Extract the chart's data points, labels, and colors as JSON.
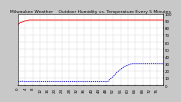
{
  "title": "Milwaukee Weather    Outdoor Humidity vs. Temperature Every 5 Minutes",
  "background_color": "#c8c8c8",
  "plot_bg_color": "#ffffff",
  "grid_color": "#a0a0a0",
  "red_color": "#ff0000",
  "blue_color": "#0000cc",
  "red_y": [
    85,
    87,
    88,
    89,
    90,
    90,
    91,
    91,
    91,
    91,
    91,
    91,
    91,
    91,
    91,
    91,
    91,
    91,
    91,
    91,
    91,
    91,
    91,
    91,
    91,
    91,
    91,
    91,
    91,
    91,
    91,
    91,
    91,
    91,
    91,
    91,
    91,
    91,
    91,
    91,
    91,
    91,
    91,
    91,
    91,
    91,
    91,
    91,
    91,
    91,
    91,
    91,
    91,
    91,
    91,
    91,
    91,
    91,
    91,
    91,
    91,
    91,
    91,
    91,
    91,
    91,
    91,
    91,
    91,
    91,
    91,
    91,
    91,
    91,
    91,
    91,
    91,
    91,
    91,
    91
  ],
  "blue_y": [
    5,
    5,
    6,
    5,
    5,
    5,
    5,
    5,
    5,
    5,
    5,
    5,
    5,
    5,
    5,
    5,
    5,
    5,
    5,
    5,
    5,
    5,
    5,
    5,
    5,
    5,
    5,
    5,
    5,
    5,
    5,
    5,
    5,
    5,
    5,
    5,
    5,
    5,
    5,
    5,
    5,
    5,
    5,
    5,
    5,
    5,
    5,
    5,
    5,
    5,
    8,
    10,
    12,
    15,
    18,
    20,
    22,
    24,
    26,
    27,
    28,
    29,
    30,
    30,
    30,
    30,
    30,
    30,
    30,
    30,
    30,
    30,
    30,
    30,
    30,
    30,
    30,
    30,
    30,
    30
  ],
  "ylim": [
    0,
    100
  ],
  "n_points": 80,
  "title_fontsize": 3.2,
  "tick_fontsize": 2.8,
  "tick_color": "#000000",
  "spine_color": "#000000",
  "y_ticks": [
    0,
    10,
    20,
    30,
    40,
    50,
    60,
    70,
    80,
    90,
    100
  ],
  "y_tick_labels": [
    "0",
    "10",
    "20",
    "30",
    "40",
    "50",
    "60",
    "70",
    "80",
    "90",
    "100"
  ]
}
